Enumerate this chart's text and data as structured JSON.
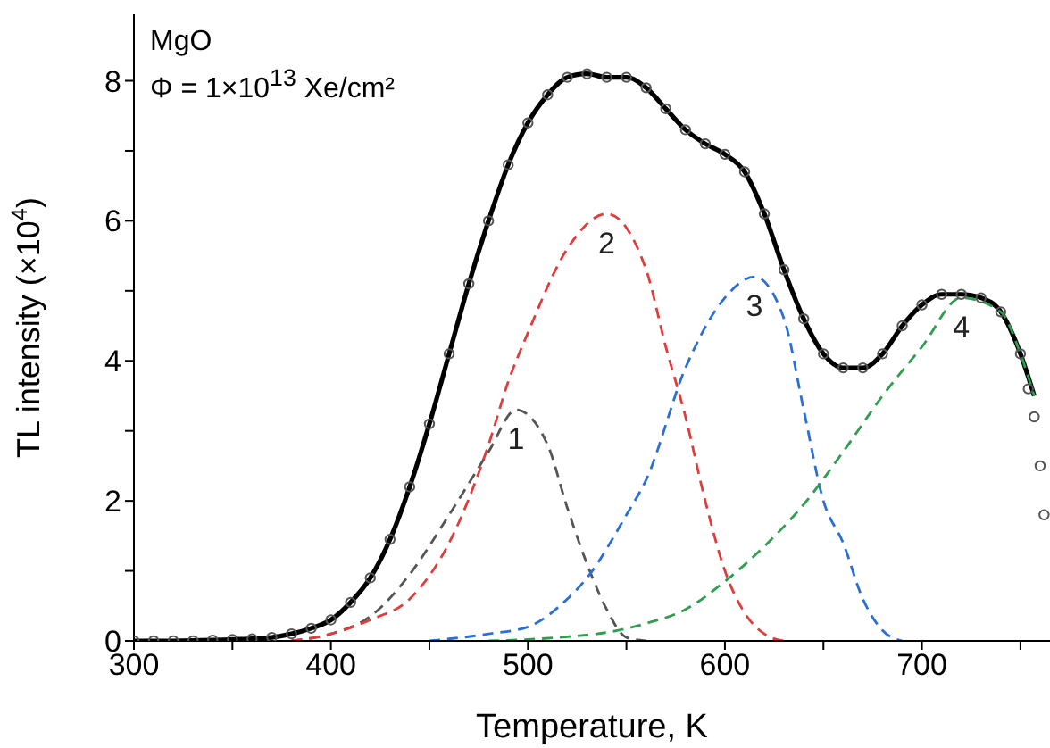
{
  "chart_data": {
    "type": "line",
    "xlabel": "Temperature, K",
    "ylabel": "TL intensity (×10$^{4}$)",
    "xlim": [
      300,
      765
    ],
    "ylim": [
      0,
      8.95
    ],
    "xticks": [
      300,
      {
        "value": 350,
        "label": null
      },
      400,
      {
        "value": 450,
        "label": null
      },
      500,
      {
        "value": 550,
        "label": null
      },
      600,
      {
        "value": 650,
        "label": null
      },
      700,
      {
        "value": 750,
        "label": null
      }
    ],
    "yticks": [
      0,
      {
        "value": 1,
        "label": null
      },
      2,
      {
        "value": 3,
        "label": null
      },
      4,
      {
        "value": 5,
        "label": null
      },
      6,
      {
        "value": 7,
        "label": null
      },
      8
    ],
    "annotations": [
      "MgO",
      "Φ = 1×10$^{13}$ Xe/cm²",
      {
        "text": "1",
        "x": 494,
        "y": 3.3
      },
      {
        "text": "2",
        "x": 540,
        "y": 6.1
      },
      {
        "text": "3",
        "x": 615,
        "y": 5.2
      },
      {
        "text": "4",
        "x": 720,
        "y": 4.9
      }
    ],
    "series": [
      {
        "type": "scatter",
        "marker": "circle",
        "color": "#555555",
        "x": [
          300,
          310,
          320,
          330,
          340,
          350,
          360,
          370,
          380,
          390,
          400,
          410,
          420,
          430,
          440,
          450,
          460,
          470,
          480,
          490,
          500,
          510,
          520,
          530,
          540,
          550,
          560,
          570,
          580,
          590,
          600,
          610,
          620,
          630,
          640,
          650,
          660,
          670,
          680,
          690,
          700,
          710,
          720,
          730,
          740,
          750,
          754,
          757,
          760,
          762
        ],
        "values": [
          0,
          0,
          0,
          0,
          0.01,
          0.02,
          0.03,
          0.05,
          0.1,
          0.18,
          0.3,
          0.55,
          0.9,
          1.45,
          2.2,
          3.1,
          4.1,
          5.1,
          6.0,
          6.8,
          7.4,
          7.8,
          8.05,
          8.1,
          8.05,
          8.05,
          7.9,
          7.6,
          7.3,
          7.1,
          6.95,
          6.7,
          6.1,
          5.3,
          4.6,
          4.1,
          3.9,
          3.9,
          4.1,
          4.5,
          4.8,
          4.95,
          4.95,
          4.9,
          4.7,
          4.1,
          3.6,
          3.2,
          2.5,
          1.8
        ]
      },
      {
        "line_style": "solid",
        "color": "#000000",
        "x": [
          300,
          320,
          340,
          350,
          360,
          370,
          380,
          390,
          400,
          410,
          420,
          430,
          440,
          450,
          460,
          470,
          480,
          490,
          500,
          510,
          520,
          530,
          540,
          550,
          560,
          570,
          580,
          590,
          600,
          610,
          620,
          630,
          640,
          650,
          660,
          670,
          680,
          690,
          700,
          710,
          720,
          730,
          740,
          750,
          757
        ],
        "values": [
          0,
          0,
          0.01,
          0.02,
          0.03,
          0.05,
          0.1,
          0.18,
          0.3,
          0.55,
          0.9,
          1.45,
          2.2,
          3.1,
          4.1,
          5.1,
          6.0,
          6.8,
          7.4,
          7.8,
          8.05,
          8.1,
          8.05,
          8.05,
          7.9,
          7.6,
          7.3,
          7.1,
          6.95,
          6.7,
          6.1,
          5.3,
          4.6,
          4.1,
          3.9,
          3.9,
          4.1,
          4.5,
          4.8,
          4.95,
          4.95,
          4.9,
          4.7,
          4.1,
          3.5
        ]
      },
      {
        "line_style": "dashed",
        "color": "#555555",
        "x": [
          380,
          400,
          420,
          440,
          460,
          480,
          494,
          510,
          520,
          530,
          540,
          550,
          560
        ],
        "values": [
          0,
          0.1,
          0.35,
          0.95,
          1.8,
          2.7,
          3.3,
          2.8,
          1.9,
          1.1,
          0.45,
          0.05,
          0
        ]
      },
      {
        "line_style": "dashed",
        "color": "#e03c3c",
        "x": [
          380,
          400,
          420,
          440,
          460,
          480,
          490,
          500,
          520,
          540,
          560,
          570,
          580,
          590,
          600,
          610,
          620,
          630
        ],
        "values": [
          0,
          0.1,
          0.3,
          0.6,
          1.4,
          2.8,
          3.7,
          4.4,
          5.6,
          6.1,
          5.3,
          4.2,
          3.2,
          2.0,
          1.0,
          0.4,
          0.1,
          0
        ]
      },
      {
        "line_style": "dashed",
        "color": "#2a6fd6",
        "x": [
          450,
          480,
          500,
          520,
          530,
          550,
          560,
          580,
          600,
          615,
          630,
          640,
          650,
          660,
          670,
          680,
          690
        ],
        "values": [
          0,
          0.1,
          0.2,
          0.6,
          0.9,
          1.8,
          2.3,
          3.9,
          4.9,
          5.2,
          4.6,
          3.3,
          2.0,
          1.4,
          0.6,
          0.15,
          0
        ]
      },
      {
        "line_style": "dashed",
        "color": "#2e9e4f",
        "x": [
          480,
          500,
          520,
          540,
          560,
          580,
          600,
          620,
          640,
          660,
          680,
          700,
          720,
          740,
          750,
          757
        ],
        "values": [
          0,
          0.02,
          0.06,
          0.12,
          0.25,
          0.45,
          0.85,
          1.35,
          1.95,
          2.7,
          3.5,
          4.2,
          4.9,
          4.7,
          4.1,
          3.5
        ]
      }
    ]
  }
}
